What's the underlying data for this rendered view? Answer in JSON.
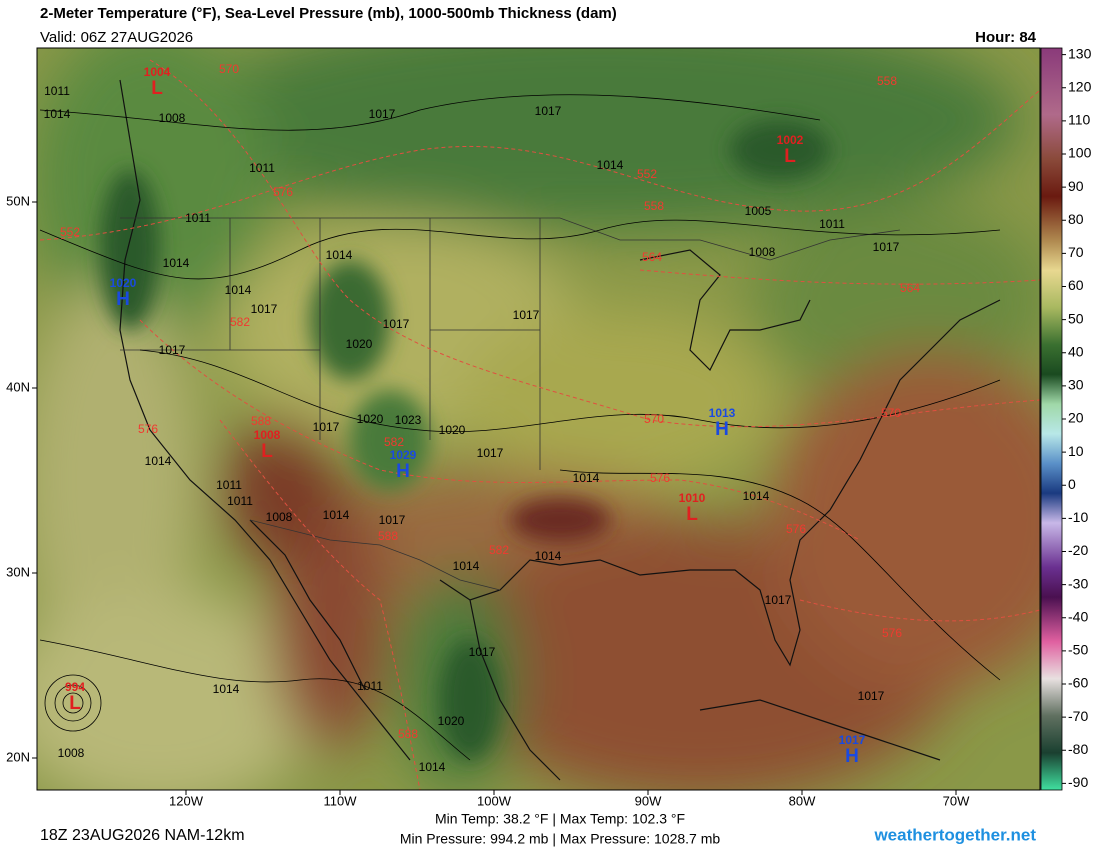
{
  "header": {
    "title": "2-Meter Temperature (°F), Sea-Level Pressure (mb), 1000-500mb Thickness (dam)",
    "valid": "Valid: 06Z 27AUG2026",
    "hour": "Hour: 84"
  },
  "colorbar": {
    "lim": [
      -92,
      132
    ],
    "ticks": [
      130,
      120,
      110,
      100,
      90,
      80,
      70,
      60,
      50,
      40,
      30,
      20,
      10,
      0,
      -10,
      -20,
      -30,
      -40,
      -50,
      -60,
      -70,
      -80,
      -90
    ]
  },
  "lat_labels": [
    "50N",
    "40N",
    "30N",
    "20N"
  ],
  "lon_labels": [
    "120W",
    "110W",
    "100W",
    "90W",
    "80W",
    "70W"
  ],
  "centers": [
    {
      "type": "H",
      "pressure": 1020
    },
    {
      "type": "L",
      "pressure": 1004
    },
    {
      "type": "L",
      "pressure": 1002
    },
    {
      "type": "H",
      "pressure": 1013
    },
    {
      "type": "H",
      "pressure": 1029
    },
    {
      "type": "L",
      "pressure": 1008
    },
    {
      "type": "L",
      "pressure": 1010
    },
    {
      "type": "H",
      "pressure": 1017
    },
    {
      "type": "L",
      "pressure": 994
    }
  ],
  "isobar_labels": [
    1011,
    1014,
    1008,
    1011,
    1011,
    1017,
    1017,
    1014,
    1005,
    1011,
    1017,
    1008,
    1014,
    1014,
    1017,
    1017,
    1020,
    1017,
    1014,
    1014,
    1011,
    1011,
    1008,
    1014,
    1017,
    1020,
    1023,
    1020,
    1017,
    1017,
    1014,
    1014,
    1014,
    1014,
    1017,
    1017,
    1011,
    1017,
    1020,
    1014,
    1014,
    1008,
    1017
  ],
  "thickness_labels": [
    570,
    576,
    552,
    552,
    558,
    558,
    564,
    564,
    582,
    588,
    576,
    570,
    570,
    576,
    582,
    588,
    588,
    582,
    576,
    576
  ],
  "footer": {
    "run": "18Z 23AUG2026 NAM-12km",
    "temps": "Min Temp:  38.2 °F | Max Temp: 102.3 °F",
    "pressures": "Min Pressure: 994.2 mb | Max Pressure: 1028.7 mb",
    "site": "weathertogether.net"
  }
}
